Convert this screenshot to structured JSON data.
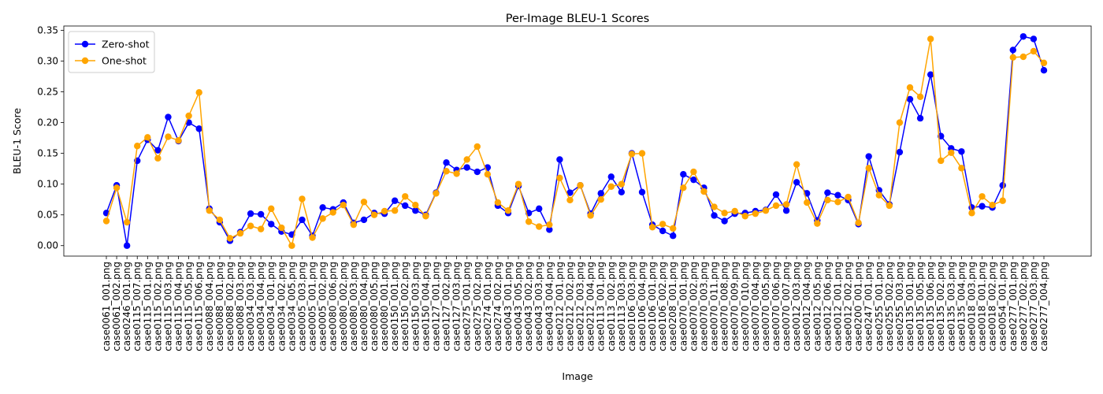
{
  "chart_data": {
    "type": "line",
    "title": "Per-Image BLEU-1 Scores",
    "xlabel": "Image",
    "ylabel": "BLEU-1 Score",
    "ylim": [
      -0.017,
      0.357
    ],
    "yticks": [
      0.0,
      0.05,
      0.1,
      0.15,
      0.2,
      0.25,
      0.3,
      0.35
    ],
    "ytick_labels": [
      "0.00",
      "0.05",
      "0.10",
      "0.15",
      "0.20",
      "0.25",
      "0.30",
      "0.35"
    ],
    "legend_position": "top-left",
    "grid": false,
    "categories": [
      "case0061_001.png",
      "case0061_002.png",
      "case0246_001.png",
      "case0115_007.png",
      "case0115_001.png",
      "case0115_002.png",
      "case0115_003.png",
      "case0115_004.png",
      "case0115_005.png",
      "case0115_006.png",
      "case0088_004.png",
      "case0088_001.png",
      "case0088_002.png",
      "case0088_003.png",
      "case0034_003.png",
      "case0034_004.png",
      "case0034_001.png",
      "case0034_002.png",
      "case0034_005.png",
      "case0005_003.png",
      "case0005_001.png",
      "case0005_002.png",
      "case0080_006.png",
      "case0080_002.png",
      "case0080_003.png",
      "case0080_004.png",
      "case0080_005.png",
      "case0080_001.png",
      "case0150_001.png",
      "case0150_002.png",
      "case0150_003.png",
      "case0150_004.png",
      "case0127_001.png",
      "case0127_002.png",
      "case0127_003.png",
      "case0275_001.png",
      "case0275_002.png",
      "case0274_001.png",
      "case0274_002.png",
      "case0043_001.png",
      "case0043_005.png",
      "case0043_002.png",
      "case0043_003.png",
      "case0043_004.png",
      "case0212_001.png",
      "case0212_002.png",
      "case0212_003.png",
      "case0212_004.png",
      "case0113_001.png",
      "case0113_002.png",
      "case0113_003.png",
      "case0106_003.png",
      "case0106_004.png",
      "case0106_001.png",
      "case0106_002.png",
      "case0208_001.png",
      "case0070_001.png",
      "case0070_002.png",
      "case0070_003.png",
      "case0070_011.png",
      "case0070_008.png",
      "case0070_009.png",
      "case0070_010.png",
      "case0070_004.png",
      "case0070_005.png",
      "case0070_006.png",
      "case0070_007.png",
      "case0012_003.png",
      "case0012_004.png",
      "case0012_005.png",
      "case0012_006.png",
      "case0012_001.png",
      "case0012_002.png",
      "case0200_001.png",
      "case0247_001.png",
      "case0255_001.png",
      "case0255_002.png",
      "case0255_003.png",
      "case0135_001.png",
      "case0135_005.png",
      "case0135_006.png",
      "case0135_002.png",
      "case0135_003.png",
      "case0135_004.png",
      "case0018_003.png",
      "case0018_001.png",
      "case0018_002.png",
      "case0054_001.png",
      "case0277_001.png",
      "case0277_002.png",
      "case0277_003.png",
      "case0277_004.png"
    ],
    "series": [
      {
        "name": "Zero-shot",
        "color": "#0000ff",
        "values": [
          0.053,
          0.098,
          0.0,
          0.138,
          0.172,
          0.155,
          0.209,
          0.17,
          0.2,
          0.19,
          0.06,
          0.038,
          0.008,
          0.022,
          0.052,
          0.051,
          0.035,
          0.023,
          0.018,
          0.042,
          0.016,
          0.062,
          0.059,
          0.07,
          0.037,
          0.042,
          0.053,
          0.052,
          0.073,
          0.065,
          0.057,
          0.05,
          0.086,
          0.135,
          0.123,
          0.127,
          0.12,
          0.127,
          0.065,
          0.053,
          0.097,
          0.053,
          0.06,
          0.026,
          0.14,
          0.086,
          0.098,
          0.052,
          0.085,
          0.112,
          0.087,
          0.15,
          0.087,
          0.034,
          0.024,
          0.016,
          0.116,
          0.107,
          0.094,
          0.049,
          0.04,
          0.052,
          0.053,
          0.056,
          0.058,
          0.083,
          0.057,
          0.103,
          0.085,
          0.041,
          0.086,
          0.082,
          0.074,
          0.035,
          0.145,
          0.09,
          0.067,
          0.152,
          0.238,
          0.207,
          0.278,
          0.178,
          0.158,
          0.153,
          0.062,
          0.064,
          0.062,
          0.098,
          0.318,
          0.34,
          0.336,
          0.285
        ]
      },
      {
        "name": "One-shot",
        "color": "#ffa500",
        "values": [
          0.04,
          0.094,
          0.038,
          0.162,
          0.176,
          0.142,
          0.177,
          0.171,
          0.211,
          0.249,
          0.057,
          0.042,
          0.012,
          0.02,
          0.032,
          0.027,
          0.06,
          0.029,
          0.0,
          0.076,
          0.013,
          0.044,
          0.054,
          0.066,
          0.034,
          0.071,
          0.05,
          0.056,
          0.057,
          0.08,
          0.066,
          0.048,
          0.085,
          0.121,
          0.117,
          0.14,
          0.161,
          0.116,
          0.07,
          0.057,
          0.1,
          0.039,
          0.031,
          0.034,
          0.11,
          0.074,
          0.098,
          0.049,
          0.075,
          0.096,
          0.1,
          0.149,
          0.15,
          0.03,
          0.035,
          0.028,
          0.094,
          0.12,
          0.088,
          0.063,
          0.053,
          0.056,
          0.048,
          0.052,
          0.057,
          0.065,
          0.067,
          0.132,
          0.07,
          0.036,
          0.074,
          0.071,
          0.079,
          0.037,
          0.126,
          0.082,
          0.065,
          0.2,
          0.257,
          0.242,
          0.336,
          0.138,
          0.151,
          0.126,
          0.053,
          0.08,
          0.066,
          0.073,
          0.306,
          0.307,
          0.316,
          0.297
        ]
      }
    ]
  }
}
